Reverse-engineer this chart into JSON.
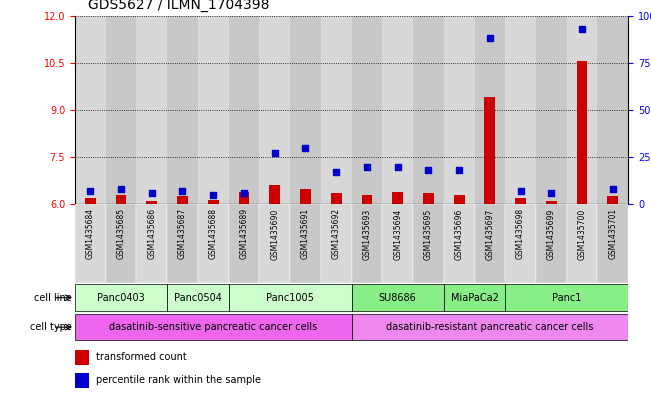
{
  "title": "GDS5627 / ILMN_1704398",
  "samples": [
    "GSM1435684",
    "GSM1435685",
    "GSM1435686",
    "GSM1435687",
    "GSM1435688",
    "GSM1435689",
    "GSM1435690",
    "GSM1435691",
    "GSM1435692",
    "GSM1435693",
    "GSM1435694",
    "GSM1435695",
    "GSM1435696",
    "GSM1435697",
    "GSM1435698",
    "GSM1435699",
    "GSM1435700",
    "GSM1435701"
  ],
  "transformed_count": [
    6.2,
    6.3,
    6.1,
    6.25,
    6.15,
    6.4,
    6.6,
    6.5,
    6.35,
    6.3,
    6.4,
    6.35,
    6.3,
    9.4,
    6.2,
    6.1,
    10.55,
    6.25
  ],
  "percentile_rank": [
    7,
    8,
    6,
    7,
    5,
    6,
    27,
    30,
    17,
    20,
    20,
    18,
    18,
    88,
    7,
    6,
    93,
    8
  ],
  "cell_lines": [
    {
      "name": "Panc0403",
      "start": 0,
      "end": 2,
      "color": "#ccffcc"
    },
    {
      "name": "Panc0504",
      "start": 3,
      "end": 4,
      "color": "#ccffcc"
    },
    {
      "name": "Panc1005",
      "start": 5,
      "end": 8,
      "color": "#ccffcc"
    },
    {
      "name": "SU8686",
      "start": 9,
      "end": 11,
      "color": "#88ee88"
    },
    {
      "name": "MiaPaCa2",
      "start": 12,
      "end": 13,
      "color": "#88ee88"
    },
    {
      "name": "Panc1",
      "start": 14,
      "end": 17,
      "color": "#88ee88"
    }
  ],
  "cell_types": [
    {
      "name": "dasatinib-sensitive pancreatic cancer cells",
      "start": 0,
      "end": 8,
      "color": "#ee66ee"
    },
    {
      "name": "dasatinib-resistant pancreatic cancer cells",
      "start": 9,
      "end": 17,
      "color": "#ee88ee"
    }
  ],
  "ylim_left": [
    6,
    12
  ],
  "ylim_right": [
    0,
    100
  ],
  "yticks_left": [
    6,
    7.5,
    9,
    10.5,
    12
  ],
  "yticks_right": [
    0,
    25,
    50,
    75,
    100
  ],
  "bar_color": "#cc0000",
  "dot_color": "#0000cc",
  "background_color": "#ffffff",
  "title_fontsize": 10,
  "tick_fontsize": 7,
  "label_fontsize": 7,
  "strip_colors": [
    "#d8d8d8",
    "#c8c8c8"
  ]
}
